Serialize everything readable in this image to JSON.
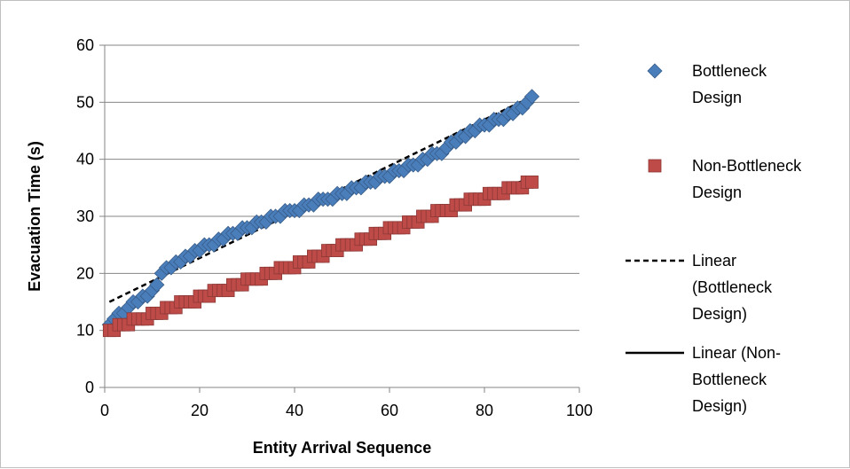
{
  "chart_data": {
    "type": "scatter",
    "xlabel": "Entity Arrival Sequence",
    "ylabel": "Evacuation Time (s)",
    "xlim": [
      0,
      100
    ],
    "ylim": [
      0,
      60
    ],
    "x_ticks": [
      "0",
      "20",
      "40",
      "60",
      "80",
      "100"
    ],
    "y_ticks": [
      "0",
      "10",
      "20",
      "30",
      "40",
      "50",
      "60"
    ],
    "grid": "horizontal",
    "legend_position": "right",
    "series": [
      {
        "name": "Bottleneck Design",
        "marker": "diamond",
        "color": "#4a7ebb",
        "x": [
          1,
          2,
          3,
          4,
          5,
          6,
          7,
          8,
          9,
          10,
          11,
          12,
          13,
          14,
          15,
          16,
          17,
          18,
          19,
          20,
          21,
          22,
          23,
          24,
          25,
          26,
          27,
          28,
          29,
          30,
          31,
          32,
          33,
          34,
          35,
          36,
          37,
          38,
          39,
          40,
          41,
          42,
          43,
          44,
          45,
          46,
          47,
          48,
          49,
          50,
          51,
          52,
          53,
          54,
          55,
          56,
          57,
          58,
          59,
          60,
          61,
          62,
          63,
          64,
          65,
          66,
          67,
          68,
          69,
          70,
          71,
          72,
          73,
          74,
          75,
          76,
          77,
          78,
          79,
          80,
          81,
          82,
          83,
          84,
          85,
          86,
          87,
          88,
          89,
          90
        ],
        "y": [
          11,
          12,
          13,
          13,
          14,
          15,
          15,
          16,
          16,
          17,
          18,
          20,
          21,
          21,
          22,
          22,
          23,
          23,
          24,
          24,
          25,
          25,
          25,
          26,
          26,
          27,
          27,
          27,
          28,
          28,
          28,
          29,
          29,
          29,
          30,
          30,
          30,
          31,
          31,
          31,
          31,
          32,
          32,
          32,
          33,
          33,
          33,
          33,
          34,
          34,
          34,
          35,
          35,
          35,
          36,
          36,
          36,
          37,
          37,
          37,
          38,
          38,
          38,
          39,
          39,
          39,
          40,
          40,
          41,
          41,
          41,
          42,
          43,
          43,
          44,
          44,
          45,
          45,
          46,
          46,
          46,
          47,
          47,
          47,
          48,
          48,
          49,
          49,
          50,
          51
        ]
      },
      {
        "name": "Non-Bottleneck Design",
        "marker": "square",
        "color": "#be4b48",
        "x": [
          1,
          2,
          3,
          4,
          5,
          6,
          7,
          8,
          9,
          10,
          11,
          12,
          13,
          14,
          15,
          16,
          17,
          18,
          19,
          20,
          21,
          22,
          23,
          24,
          25,
          26,
          27,
          28,
          29,
          30,
          31,
          32,
          33,
          34,
          35,
          36,
          37,
          38,
          39,
          40,
          41,
          42,
          43,
          44,
          45,
          46,
          47,
          48,
          49,
          50,
          51,
          52,
          53,
          54,
          55,
          56,
          57,
          58,
          59,
          60,
          61,
          62,
          63,
          64,
          65,
          66,
          67,
          68,
          69,
          70,
          71,
          72,
          73,
          74,
          75,
          76,
          77,
          78,
          79,
          80,
          81,
          82,
          83,
          84,
          85,
          86,
          87,
          88,
          89,
          90
        ],
        "y": [
          10,
          10,
          11,
          11,
          11,
          12,
          12,
          12,
          12,
          13,
          13,
          13,
          14,
          14,
          14,
          15,
          15,
          15,
          15,
          16,
          16,
          16,
          17,
          17,
          17,
          17,
          18,
          18,
          18,
          19,
          19,
          19,
          19,
          20,
          20,
          20,
          21,
          21,
          21,
          21,
          22,
          22,
          22,
          23,
          23,
          23,
          24,
          24,
          24,
          25,
          25,
          25,
          25,
          26,
          26,
          26,
          27,
          27,
          27,
          28,
          28,
          28,
          28,
          29,
          29,
          29,
          30,
          30,
          30,
          31,
          31,
          31,
          31,
          32,
          32,
          32,
          33,
          33,
          33,
          33,
          34,
          34,
          34,
          34,
          35,
          35,
          35,
          35,
          36,
          36
        ]
      }
    ],
    "trendlines": [
      {
        "name": "Linear (Bottleneck Design)",
        "style": "dashed",
        "color": "#000000",
        "x": [
          1,
          90
        ],
        "y": [
          15,
          51
        ]
      },
      {
        "name": "Linear (Non-Bottleneck Design)",
        "style": "solid",
        "color": "#000000",
        "x": [
          1,
          90
        ],
        "y": [
          10.2,
          36.8
        ]
      }
    ],
    "legend": [
      {
        "lines": [
          "Bottleneck",
          "Design"
        ],
        "symbol": "diamond",
        "color": "#4a7ebb"
      },
      {
        "lines": [
          "Non-Bottleneck",
          "Design"
        ],
        "symbol": "square",
        "color": "#be4b48"
      },
      {
        "lines": [
          "Linear",
          "(Bottleneck",
          "Design)"
        ],
        "symbol": "dashed-line",
        "color": "#000000"
      },
      {
        "lines": [
          "Linear (Non-",
          "Bottleneck",
          "Design)"
        ],
        "symbol": "solid-line",
        "color": "#000000"
      }
    ]
  }
}
